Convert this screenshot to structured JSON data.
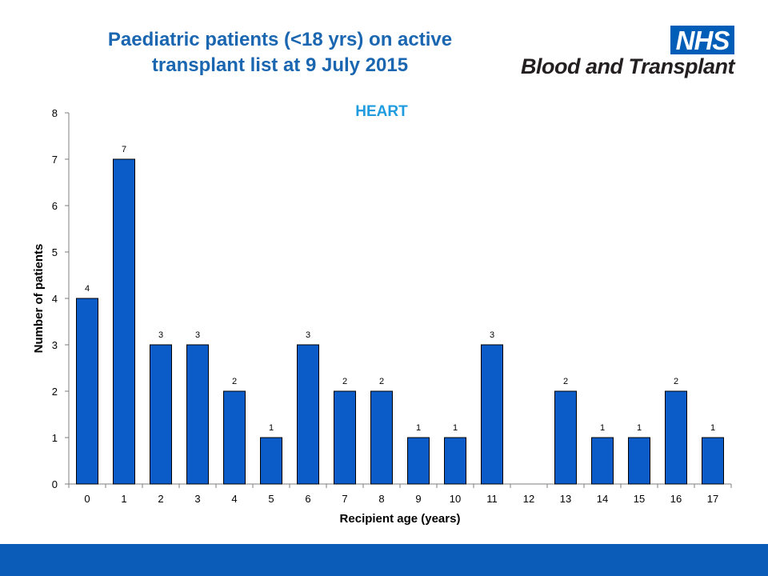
{
  "header": {
    "title_line1": "Paediatric patients (<18 yrs) on active",
    "title_line2": "transplant list at 9 July 2015"
  },
  "logo": {
    "badge": "NHS",
    "text": "Blood and Transplant"
  },
  "colors": {
    "title": "#1a66b0",
    "chart_title": "#1f9be0",
    "bar_fill": "#0b5cc8",
    "bar_stroke": "#000000",
    "footer": "#0b5cb8",
    "nhs_blue": "#005eb8"
  },
  "chart_data": {
    "type": "bar",
    "title": "HEART",
    "xlabel": "Recipient age (years)",
    "ylabel": "Number of patients",
    "categories": [
      "0",
      "1",
      "2",
      "3",
      "4",
      "5",
      "6",
      "7",
      "8",
      "9",
      "10",
      "11",
      "12",
      "13",
      "14",
      "15",
      "16",
      "17"
    ],
    "values": [
      4,
      7,
      3,
      3,
      2,
      1,
      3,
      2,
      2,
      1,
      1,
      3,
      0,
      2,
      1,
      1,
      2,
      1
    ],
    "data_labels": [
      "4",
      "7",
      "3",
      "3",
      "2",
      "1",
      "3",
      "2",
      "2",
      "1",
      "1",
      "3",
      "",
      "2",
      "1",
      "1",
      "2",
      "1"
    ],
    "ylim": [
      0,
      8
    ],
    "yticks": [
      0,
      1,
      2,
      3,
      4,
      5,
      6,
      7,
      8
    ],
    "grid": false,
    "legend": "none"
  }
}
